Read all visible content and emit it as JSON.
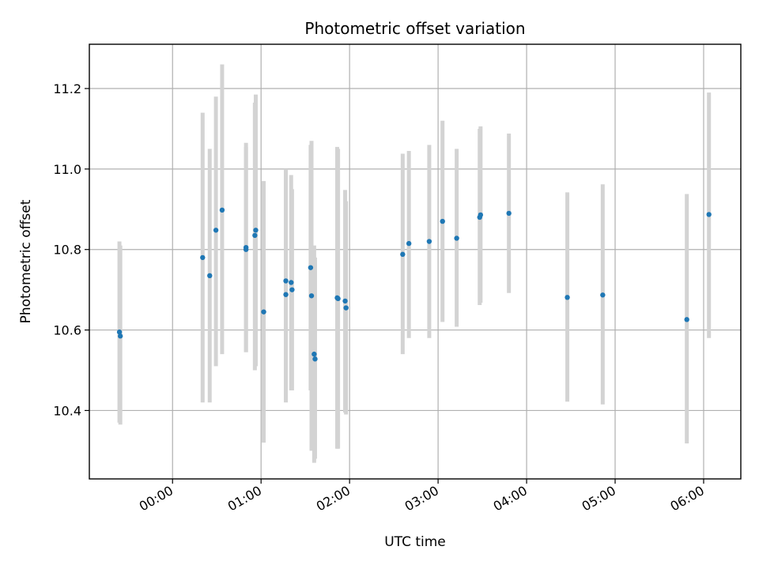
{
  "chart_data": {
    "type": "scatter",
    "title": "Photometric offset variation",
    "xlabel": "UTC time",
    "ylabel": "Photometric offset",
    "x_unit": "UTC hours",
    "xlim": [
      -0.94,
      6.42
    ],
    "ylim": [
      10.23,
      11.31
    ],
    "x_ticks": [
      {
        "value": 0,
        "label": "00:00"
      },
      {
        "value": 1,
        "label": "01:00"
      },
      {
        "value": 2,
        "label": "02:00"
      },
      {
        "value": 3,
        "label": "03:00"
      },
      {
        "value": 4,
        "label": "04:00"
      },
      {
        "value": 5,
        "label": "05:00"
      },
      {
        "value": 6,
        "label": "06:00"
      }
    ],
    "y_ticks": [
      {
        "value": 10.4,
        "label": "10.4"
      },
      {
        "value": 10.6,
        "label": "10.6"
      },
      {
        "value": 10.8,
        "label": "10.8"
      },
      {
        "value": 11.0,
        "label": "11.0"
      },
      {
        "value": 11.2,
        "label": "11.2"
      }
    ],
    "grid": true,
    "colors": {
      "points": "#1f77b4",
      "errorbars": "#d3d3d3",
      "grid": "#b0b0b0"
    },
    "points": [
      {
        "x": -0.6,
        "y": 10.595,
        "err_low": 10.37,
        "err_high": 10.82
      },
      {
        "x": -0.59,
        "y": 10.585,
        "err_low": 10.365,
        "err_high": 10.81
      },
      {
        "x": 0.34,
        "y": 10.78,
        "err_low": 10.42,
        "err_high": 11.14
      },
      {
        "x": 0.42,
        "y": 10.735,
        "err_low": 10.42,
        "err_high": 11.05
      },
      {
        "x": 0.49,
        "y": 10.848,
        "err_low": 10.51,
        "err_high": 11.18
      },
      {
        "x": 0.56,
        "y": 10.898,
        "err_low": 10.54,
        "err_high": 11.26
      },
      {
        "x": 0.83,
        "y": 10.805,
        "err_low": 10.545,
        "err_high": 11.065
      },
      {
        "x": 0.83,
        "y": 10.8,
        "err_low": 10.545,
        "err_high": 11.055
      },
      {
        "x": 0.93,
        "y": 10.835,
        "err_low": 10.5,
        "err_high": 11.165
      },
      {
        "x": 0.94,
        "y": 10.848,
        "err_low": 10.51,
        "err_high": 11.185
      },
      {
        "x": 1.03,
        "y": 10.645,
        "err_low": 10.32,
        "err_high": 10.97
      },
      {
        "x": 1.28,
        "y": 10.722,
        "err_low": 10.445,
        "err_high": 11.0
      },
      {
        "x": 1.28,
        "y": 10.688,
        "err_low": 10.42,
        "err_high": 10.99
      },
      {
        "x": 1.34,
        "y": 10.718,
        "err_low": 10.45,
        "err_high": 10.985
      },
      {
        "x": 1.35,
        "y": 10.7,
        "err_low": 10.45,
        "err_high": 10.95
      },
      {
        "x": 1.56,
        "y": 10.755,
        "err_low": 10.45,
        "err_high": 11.06
      },
      {
        "x": 1.57,
        "y": 10.685,
        "err_low": 10.3,
        "err_high": 11.07
      },
      {
        "x": 1.6,
        "y": 10.54,
        "err_low": 10.27,
        "err_high": 10.81
      },
      {
        "x": 1.61,
        "y": 10.528,
        "err_low": 10.28,
        "err_high": 10.78
      },
      {
        "x": 1.86,
        "y": 10.68,
        "err_low": 10.305,
        "err_high": 11.055
      },
      {
        "x": 1.87,
        "y": 10.678,
        "err_low": 10.305,
        "err_high": 11.05
      },
      {
        "x": 1.95,
        "y": 10.672,
        "err_low": 10.395,
        "err_high": 10.948
      },
      {
        "x": 1.96,
        "y": 10.655,
        "err_low": 10.39,
        "err_high": 10.92
      },
      {
        "x": 2.6,
        "y": 10.788,
        "err_low": 10.54,
        "err_high": 11.038
      },
      {
        "x": 2.67,
        "y": 10.815,
        "err_low": 10.58,
        "err_high": 11.045
      },
      {
        "x": 2.9,
        "y": 10.82,
        "err_low": 10.58,
        "err_high": 11.06
      },
      {
        "x": 3.05,
        "y": 10.87,
        "err_low": 10.62,
        "err_high": 11.12
      },
      {
        "x": 3.21,
        "y": 10.828,
        "err_low": 10.608,
        "err_high": 11.05
      },
      {
        "x": 3.47,
        "y": 10.88,
        "err_low": 10.662,
        "err_high": 11.1
      },
      {
        "x": 3.48,
        "y": 10.886,
        "err_low": 10.668,
        "err_high": 11.106
      },
      {
        "x": 3.8,
        "y": 10.89,
        "err_low": 10.692,
        "err_high": 11.088
      },
      {
        "x": 4.46,
        "y": 10.681,
        "err_low": 10.422,
        "err_high": 10.942
      },
      {
        "x": 4.86,
        "y": 10.687,
        "err_low": 10.415,
        "err_high": 10.962
      },
      {
        "x": 5.81,
        "y": 10.626,
        "err_low": 10.318,
        "err_high": 10.938
      },
      {
        "x": 6.06,
        "y": 10.887,
        "err_low": 10.58,
        "err_high": 11.19
      }
    ]
  }
}
